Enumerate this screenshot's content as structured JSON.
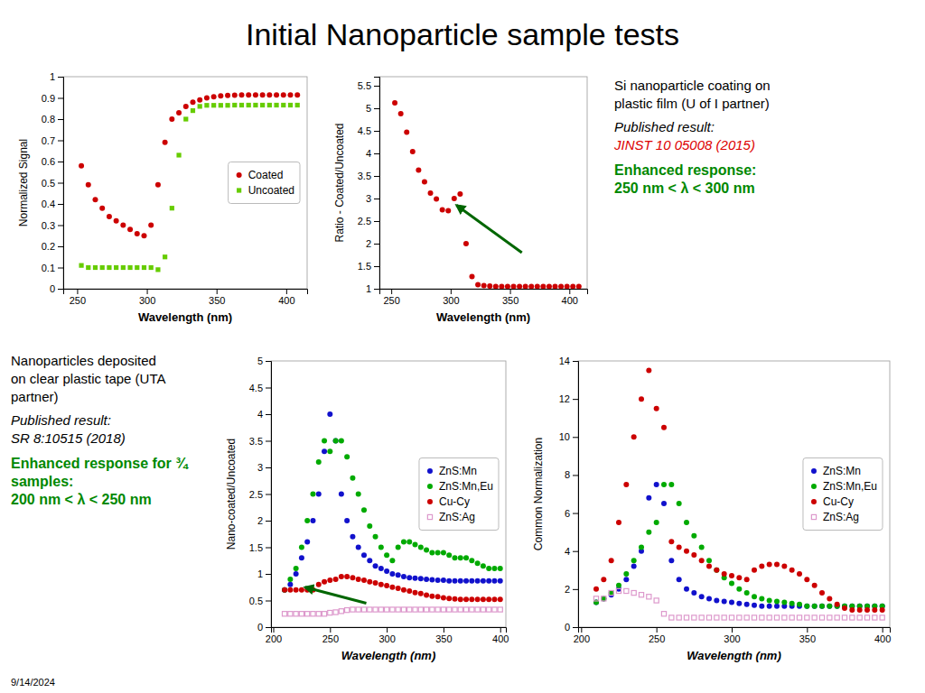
{
  "title": "Initial Nanoparticle sample tests",
  "notes": [
    {
      "lines": [
        "Si nanoparticle coating on",
        "plastic film (U of I partner)"
      ],
      "published": "Published result:",
      "reference": "JINST 10 05008 (2015)",
      "reference_color": "#dd0000",
      "highlight": [
        "Enhanced response:",
        "250 nm < λ < 300 nm"
      ],
      "highlight_color": "#008800"
    },
    {
      "lines": [
        "Nanoparticles deposited",
        "on clear plastic tape (UTA",
        "partner)"
      ],
      "published": "Published result:",
      "reference": "SR 8:10515 (2018)",
      "highlight": [
        "Enhanced response for ¾",
        "samples:",
        "200 nm < λ < 250 nm"
      ],
      "highlight_color": "#008800"
    }
  ],
  "date": "9/14/2024",
  "chart_data": [
    {
      "type": "scatter",
      "xlabel": "Wavelength (nm)",
      "ylabel": "Normalized Signal",
      "xlim": [
        240,
        415
      ],
      "ylim": [
        0,
        1.0
      ],
      "xticks": [
        250,
        300,
        350,
        400
      ],
      "yticks": [
        0,
        0.1,
        0.2,
        0.3,
        0.4,
        0.5,
        0.6,
        0.7,
        0.8,
        0.9,
        1
      ],
      "grid": false,
      "legend": "center right",
      "series": [
        {
          "name": "Coated",
          "color": "#cc0000",
          "marker": "circle",
          "x": [
            253,
            258,
            263,
            268,
            273,
            278,
            283,
            288,
            293,
            298,
            303,
            308,
            313,
            318,
            323,
            328,
            333,
            338,
            343,
            348,
            353,
            358,
            363,
            368,
            373,
            378,
            383,
            388,
            393,
            398,
            403,
            408
          ],
          "values": [
            0.58,
            0.49,
            0.42,
            0.38,
            0.34,
            0.32,
            0.3,
            0.28,
            0.26,
            0.25,
            0.3,
            0.49,
            0.69,
            0.8,
            0.83,
            0.86,
            0.88,
            0.89,
            0.9,
            0.905,
            0.91,
            0.912,
            0.913,
            0.914,
            0.914,
            0.914,
            0.914,
            0.914,
            0.914,
            0.914,
            0.914,
            0.914
          ]
        },
        {
          "name": "Uncoated",
          "color": "#66cc00",
          "marker": "square",
          "x": [
            253,
            258,
            263,
            268,
            273,
            278,
            283,
            288,
            293,
            298,
            303,
            308,
            313,
            318,
            323,
            328,
            333,
            338,
            343,
            348,
            353,
            358,
            363,
            368,
            373,
            378,
            383,
            388,
            393,
            398,
            403,
            408
          ],
          "values": [
            0.11,
            0.1,
            0.1,
            0.1,
            0.1,
            0.1,
            0.1,
            0.1,
            0.1,
            0.1,
            0.1,
            0.09,
            0.15,
            0.38,
            0.63,
            0.8,
            0.84,
            0.86,
            0.865,
            0.865,
            0.865,
            0.865,
            0.866,
            0.866,
            0.866,
            0.866,
            0.866,
            0.866,
            0.866,
            0.866,
            0.866,
            0.866
          ]
        }
      ]
    },
    {
      "type": "scatter",
      "xlabel": "Wavelength (nm)",
      "ylabel": "Ratio - Coated/Uncoated",
      "xlim": [
        240,
        415
      ],
      "ylim": [
        1,
        5.7
      ],
      "xticks": [
        250,
        300,
        350,
        400
      ],
      "yticks": [
        1,
        1.5,
        2,
        2.5,
        3,
        3.5,
        4,
        4.5,
        5,
        5.5
      ],
      "grid": false,
      "color": "#cc0000",
      "marker": "circle",
      "x": [
        253,
        258,
        263,
        268,
        273,
        278,
        283,
        288,
        293,
        298,
        303,
        308,
        313,
        318,
        323,
        328,
        333,
        338,
        343,
        348,
        353,
        358,
        363,
        368,
        373,
        378,
        383,
        388,
        393,
        398,
        403,
        408
      ],
      "values": [
        5.12,
        4.88,
        4.47,
        4.04,
        3.63,
        3.37,
        3.12,
        2.99,
        2.75,
        2.73,
        3.0,
        3.1,
        2.0,
        1.27,
        1.09,
        1.07,
        1.06,
        1.05,
        1.05,
        1.05,
        1.05,
        1.05,
        1.05,
        1.05,
        1.05,
        1.05,
        1.05,
        1.05,
        1.05,
        1.05,
        1.05,
        1.05
      ],
      "annotations": [
        {
          "type": "arrow",
          "x": 305,
          "y": 2.85,
          "x_from": 360,
          "y_from": 1.8,
          "color": "#006600"
        }
      ]
    },
    {
      "type": "scatter",
      "xlabel": "Wavelength (nm)",
      "ylabel": "Nano-coated/Uncoated",
      "xlim": [
        198,
        405
      ],
      "ylim": [
        0,
        5
      ],
      "xticks": [
        200,
        250,
        300,
        350,
        400
      ],
      "yticks": [
        0,
        0.5,
        1,
        1.5,
        2,
        2.5,
        3,
        3.5,
        4,
        4.5,
        5
      ],
      "grid": false,
      "legend": "center right",
      "series": [
        {
          "name": "ZnS:Mn",
          "color": "#1111cc",
          "marker": "circle",
          "x": [
            210,
            215,
            220,
            225,
            230,
            235,
            240,
            245,
            250,
            255,
            260,
            265,
            270,
            275,
            280,
            285,
            290,
            295,
            300,
            305,
            310,
            315,
            320,
            325,
            330,
            335,
            340,
            345,
            350,
            355,
            360,
            365,
            370,
            375,
            380,
            385,
            390,
            395,
            400
          ],
          "values": [
            0.7,
            0.8,
            1.0,
            1.3,
            1.6,
            2.0,
            2.5,
            3.3,
            4.0,
            3.5,
            2.5,
            2.0,
            1.7,
            1.5,
            1.35,
            1.25,
            1.15,
            1.1,
            1.05,
            1.0,
            0.98,
            0.95,
            0.93,
            0.92,
            0.91,
            0.9,
            0.89,
            0.88,
            0.88,
            0.87,
            0.87,
            0.87,
            0.87,
            0.87,
            0.87,
            0.87,
            0.87,
            0.87,
            0.87
          ]
        },
        {
          "name": "ZnS:Mn,Eu",
          "color": "#00aa00",
          "marker": "circle",
          "x": [
            210,
            215,
            220,
            225,
            230,
            235,
            240,
            245,
            250,
            255,
            260,
            265,
            270,
            275,
            280,
            285,
            290,
            295,
            300,
            305,
            310,
            315,
            320,
            325,
            330,
            335,
            340,
            345,
            350,
            355,
            360,
            365,
            370,
            375,
            380,
            385,
            390,
            395,
            400
          ],
          "values": [
            0.7,
            0.9,
            1.1,
            1.5,
            2.0,
            2.5,
            3.1,
            3.5,
            3.3,
            3.5,
            3.5,
            3.2,
            2.8,
            2.5,
            2.2,
            1.9,
            1.7,
            1.5,
            1.35,
            1.25,
            1.5,
            1.6,
            1.6,
            1.55,
            1.5,
            1.45,
            1.4,
            1.4,
            1.4,
            1.35,
            1.3,
            1.3,
            1.3,
            1.25,
            1.2,
            1.15,
            1.1,
            1.1,
            1.1
          ]
        },
        {
          "name": "Cu-Cy",
          "color": "#cc0000",
          "marker": "circle",
          "x": [
            210,
            215,
            220,
            225,
            230,
            235,
            240,
            245,
            250,
            255,
            260,
            265,
            270,
            275,
            280,
            285,
            290,
            295,
            300,
            305,
            310,
            315,
            320,
            325,
            330,
            335,
            340,
            345,
            350,
            355,
            360,
            365,
            370,
            375,
            380,
            385,
            390,
            395,
            400
          ],
          "values": [
            0.7,
            0.7,
            0.7,
            0.7,
            0.7,
            0.7,
            0.8,
            0.85,
            0.88,
            0.9,
            0.95,
            0.95,
            0.93,
            0.9,
            0.88,
            0.85,
            0.83,
            0.8,
            0.78,
            0.75,
            0.73,
            0.7,
            0.68,
            0.65,
            0.63,
            0.6,
            0.58,
            0.57,
            0.55,
            0.54,
            0.53,
            0.52,
            0.52,
            0.52,
            0.52,
            0.52,
            0.52,
            0.52,
            0.52
          ]
        },
        {
          "name": "ZnS:Ag",
          "color": "#dd99cc",
          "marker": "square-open",
          "x": [
            210,
            215,
            220,
            225,
            230,
            235,
            240,
            245,
            250,
            255,
            260,
            265,
            270,
            275,
            280,
            285,
            290,
            295,
            300,
            305,
            310,
            315,
            320,
            325,
            330,
            335,
            340,
            345,
            350,
            355,
            360,
            365,
            370,
            375,
            380,
            385,
            390,
            395,
            400
          ],
          "values": [
            0.25,
            0.25,
            0.25,
            0.25,
            0.25,
            0.25,
            0.25,
            0.25,
            0.27,
            0.28,
            0.3,
            0.32,
            0.33,
            0.33,
            0.33,
            0.33,
            0.33,
            0.33,
            0.33,
            0.33,
            0.33,
            0.33,
            0.33,
            0.33,
            0.33,
            0.33,
            0.33,
            0.33,
            0.33,
            0.33,
            0.33,
            0.33,
            0.33,
            0.33,
            0.33,
            0.33,
            0.33,
            0.33,
            0.33
          ]
        }
      ],
      "annotations": [
        {
          "type": "arrow",
          "x": 228,
          "y": 0.75,
          "x_from": 282,
          "y_from": 0.45,
          "color": "#006600"
        }
      ]
    },
    {
      "type": "scatter",
      "xlabel": "Wavelength (nm)",
      "ylabel": "Common Normalization",
      "xlim": [
        198,
        405
      ],
      "ylim": [
        0,
        14
      ],
      "xticks": [
        200,
        250,
        300,
        350,
        400
      ],
      "yticks": [
        0,
        2,
        4,
        6,
        8,
        10,
        12,
        14
      ],
      "grid": false,
      "legend": "center right",
      "series": [
        {
          "name": "ZnS:Mn",
          "color": "#1111cc",
          "marker": "circle",
          "x": [
            210,
            215,
            220,
            225,
            230,
            235,
            240,
            245,
            250,
            255,
            260,
            265,
            270,
            275,
            280,
            285,
            290,
            295,
            300,
            305,
            310,
            315,
            320,
            325,
            330,
            335,
            340,
            345,
            350,
            355,
            360,
            365,
            370,
            375,
            380,
            385,
            390,
            395,
            400
          ],
          "values": [
            1.3,
            1.5,
            1.7,
            2.0,
            2.5,
            3.2,
            4.0,
            6.8,
            7.5,
            6.5,
            3.5,
            2.5,
            2.0,
            1.8,
            1.6,
            1.5,
            1.4,
            1.35,
            1.3,
            1.25,
            1.2,
            1.15,
            1.1,
            1.1,
            1.1,
            1.1,
            1.1,
            1.1,
            1.1,
            1.1,
            1.1,
            1.1,
            1.1,
            1.1,
            1.1,
            1.1,
            1.1,
            1.1,
            1.1
          ]
        },
        {
          "name": "ZnS:Mn,Eu",
          "color": "#00aa00",
          "marker": "circle",
          "x": [
            210,
            215,
            220,
            225,
            230,
            235,
            240,
            245,
            250,
            255,
            260,
            265,
            270,
            275,
            280,
            285,
            290,
            295,
            300,
            305,
            310,
            315,
            320,
            325,
            330,
            335,
            340,
            345,
            350,
            355,
            360,
            365,
            370,
            375,
            380,
            385,
            390,
            395,
            400
          ],
          "values": [
            1.3,
            1.5,
            1.8,
            2.2,
            2.8,
            3.5,
            4.2,
            5.0,
            5.5,
            7.5,
            7.5,
            6.5,
            5.5,
            4.8,
            4.2,
            3.5,
            3.0,
            2.6,
            2.3,
            2.0,
            1.8,
            1.6,
            1.5,
            1.4,
            1.35,
            1.3,
            1.25,
            1.2,
            1.1,
            1.1,
            1.1,
            1.1,
            1.1,
            1.1,
            1.1,
            1.1,
            1.1,
            1.1,
            1.1
          ]
        },
        {
          "name": "Cu-Cy",
          "color": "#cc0000",
          "marker": "circle",
          "x": [
            210,
            215,
            220,
            225,
            230,
            235,
            240,
            245,
            250,
            255,
            260,
            265,
            270,
            275,
            280,
            285,
            290,
            295,
            300,
            305,
            310,
            315,
            320,
            325,
            330,
            335,
            340,
            345,
            350,
            355,
            360,
            365,
            370,
            375,
            380,
            385,
            390,
            395,
            400
          ],
          "values": [
            2.0,
            2.5,
            3.5,
            5.5,
            7.5,
            10.0,
            12.0,
            13.5,
            11.5,
            10.5,
            4.5,
            4.2,
            4.0,
            3.8,
            3.5,
            3.2,
            3.0,
            2.8,
            2.7,
            2.6,
            2.5,
            3.0,
            3.2,
            3.3,
            3.3,
            3.2,
            3.0,
            2.8,
            2.5,
            2.2,
            1.8,
            1.5,
            1.2,
            1.0,
            0.9,
            0.9,
            0.9,
            0.9,
            0.9
          ]
        },
        {
          "name": "ZnS:Ag",
          "color": "#dd99cc",
          "marker": "square-open",
          "x": [
            210,
            215,
            220,
            225,
            230,
            235,
            240,
            245,
            250,
            255,
            260,
            265,
            270,
            275,
            280,
            285,
            290,
            295,
            300,
            305,
            310,
            315,
            320,
            325,
            330,
            335,
            340,
            345,
            350,
            355,
            360,
            365,
            370,
            375,
            380,
            385,
            390,
            395,
            400
          ],
          "values": [
            1.5,
            1.5,
            1.8,
            1.9,
            1.9,
            1.8,
            1.7,
            1.6,
            1.4,
            0.7,
            0.5,
            0.5,
            0.5,
            0.5,
            0.5,
            0.5,
            0.5,
            0.5,
            0.5,
            0.5,
            0.5,
            0.5,
            0.5,
            0.5,
            0.5,
            0.5,
            0.5,
            0.5,
            0.5,
            0.5,
            0.5,
            0.5,
            0.5,
            0.5,
            0.5,
            0.5,
            0.5,
            0.5,
            0.5
          ]
        }
      ]
    }
  ]
}
